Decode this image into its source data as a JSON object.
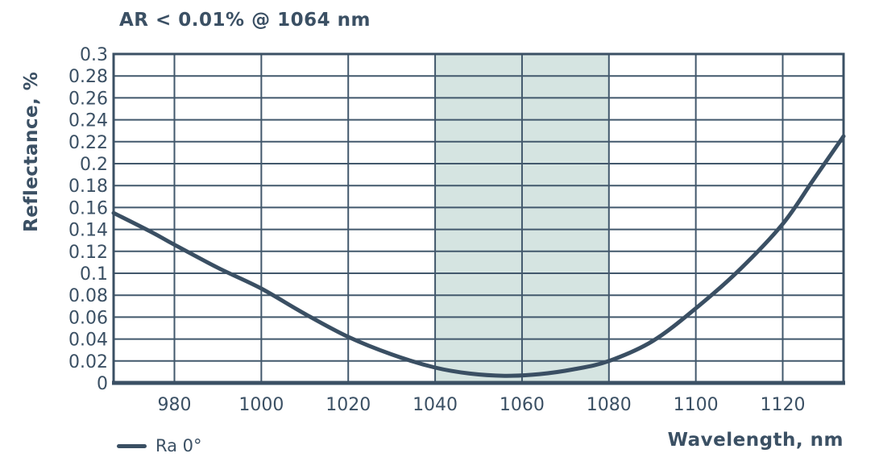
{
  "title": "AR < 0.01% @ 1064 nm",
  "colors": {
    "text": "#3b5064",
    "grid": "#42586c",
    "border": "#3b5064",
    "curve": "#3a4f63",
    "band": "#d5e4e1",
    "plot_background": "#ffffff"
  },
  "legend": {
    "entries": [
      {
        "label": "Ra 0°",
        "swatch": "line",
        "color": "#3a4f63"
      }
    ]
  },
  "chart_data": {
    "type": "line",
    "title": "AR < 0.01% @ 1064 nm",
    "xlabel": "Wavelength, nm",
    "ylabel": "Reflectance, %",
    "xlim": [
      966,
      1134
    ],
    "ylim": [
      0,
      0.3
    ],
    "x_ticks": [
      980,
      1000,
      1020,
      1040,
      1060,
      1080,
      1100,
      1120
    ],
    "x_tick_labels": [
      "980",
      "1000",
      "1020",
      "1040",
      "1060",
      "1080",
      "1100",
      "1120"
    ],
    "y_ticks": [
      0,
      0.02,
      0.04,
      0.06,
      0.08,
      0.1,
      0.12,
      0.14,
      0.16,
      0.18,
      0.2,
      0.22,
      0.24,
      0.26,
      0.28,
      0.3
    ],
    "y_tick_labels": [
      "0",
      "0.02",
      "0.04",
      "0.06",
      "0.08",
      "0.1",
      "0.12",
      "0.14",
      "0.16",
      "0.18",
      "0.2",
      "0.22",
      "0.24",
      "0.26",
      "0.28",
      "0.3"
    ],
    "grid": true,
    "legend_position": "bottom-left",
    "highlight_band": {
      "x_start": 1040,
      "x_end": 1080,
      "color": "#d5e4e1"
    },
    "series": [
      {
        "name": "Ra 0°",
        "x": [
          966,
          975,
          980,
          990,
          1000,
          1010,
          1020,
          1030,
          1040,
          1048,
          1056,
          1064,
          1072,
          1080,
          1090,
          1100,
          1110,
          1120,
          1127,
          1134
        ],
        "y": [
          0.155,
          0.137,
          0.126,
          0.105,
          0.086,
          0.063,
          0.042,
          0.026,
          0.014,
          0.0085,
          0.0065,
          0.008,
          0.0125,
          0.02,
          0.038,
          0.068,
          0.103,
          0.145,
          0.185,
          0.225
        ]
      }
    ]
  }
}
